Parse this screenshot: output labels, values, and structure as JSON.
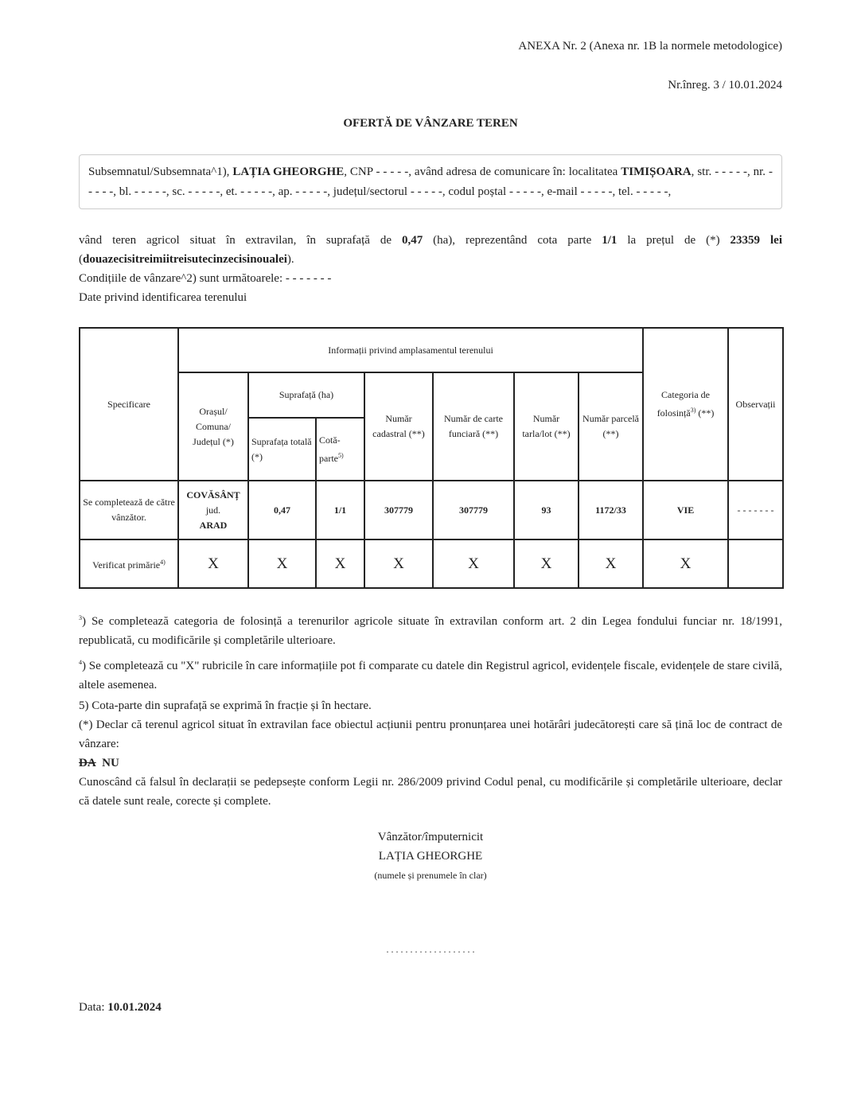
{
  "header": {
    "annex": "ANEXA Nr. 2 (Anexa nr. 1B la normele metodologice)",
    "registration": "Nr.înreg. 3 / 10.01.2024",
    "title": "OFERTĂ DE VÂNZARE TEREN"
  },
  "identity": {
    "p1": "Subsemnatul/Subsemnata^1), ",
    "name": "LAȚIA GHEORGHE",
    "p2": ", CNP - - - - -, având adresa de comunicare în: localitatea ",
    "city": "TIMIȘOARA",
    "p3": ", str. - - - - -, nr. - - - - -, bl. - - - - -, sc. - - - - -, et. - - - - -, ap. - - - - -, județul/sectorul - - - - -, codul poștal - - - - -, e-mail - - - - -, tel. - - - - -,"
  },
  "offer": {
    "p1": "vând teren agricol situat în extravilan, în suprafață de ",
    "area": "0,47",
    "p2": " (ha), reprezentând cota parte ",
    "share": "1/1",
    "p3": " la prețul de (*) ",
    "price": "23359 lei",
    "p4": " (",
    "price_words": "douazecisitreimiitreisutecinzecisinoualei",
    "p5": ").",
    "conditions": "Condițiile de vânzare^2) sunt următoarele: - - - - - - -",
    "land_data": "Date privind identificarea terenului"
  },
  "table": {
    "h_spec": "Specificare",
    "h_info": "Informații privind amplasamentul terenului",
    "h_city": "Orașul/ Comuna/ Județul (*)",
    "h_area": "Suprafață (ha)",
    "h_total": "Suprafața totală (*)",
    "h_share": "Cotă-parte",
    "h_share_sup": "5)",
    "h_cad": "Număr cadastral (**)",
    "h_cf": "Număr de carte funciară (**)",
    "h_tarla": "Număr tarla/lot (**)",
    "h_parcel": "Număr parcelă (**)",
    "h_cat": "Categoria de folosință",
    "h_cat_sup": "3)",
    "h_cat_suffix": " (**)",
    "h_obs": "Observații",
    "row1": {
      "label": "Se completează de către vânzător.",
      "city": "COVĂSÂNȚ",
      "jud": "jud.",
      "county": "ARAD",
      "total": "0,47",
      "share": "1/1",
      "cad": "307779",
      "cf": "307779",
      "tarla": "93",
      "parcel": "1172/33",
      "cat": "VIE",
      "obs": "- - - - - - -"
    },
    "row2": {
      "label": "Verificat primărie",
      "label_sup": "4)",
      "mark": "X"
    }
  },
  "notes": {
    "n3_sup": "3",
    "n3": ") Se completează categoria de folosință a terenurilor agricole situate în extravilan conform art. 2 din Legea fondului funciar nr. 18/1991, republicată, cu modificările și completările ulterioare.",
    "n4_sup": "4",
    "n4": ") Se completează cu \"X\" rubricile în care informațiile pot fi comparate cu datele din Registrul agricol, evidențele fiscale, evidențele de stare civilă, altele asemenea.",
    "n5": "5) Cota-parte din suprafață se exprimă în fracție și în hectare.",
    "declare": "(*) Declar că terenul agricol situat în extravilan face obiectul acțiunii pentru pronunțarea unei hotărâri judecătorești care să țină loc de contract de vânzare:",
    "da": "DA",
    "nu": "NU",
    "penal": "Cunoscând că falsul în declarații se pedepsește conform Legii nr. 286/2009 privind Codul penal, cu modificările și completările ulterioare, declar că datele sunt reale, corecte și complete."
  },
  "signature": {
    "role": "Vânzător/împuternicit",
    "name": "LAȚIA GHEORGHE",
    "hint": "(numele și prenumele în clar)",
    "line": ". . . . . . . . . . . . . . . . . . ."
  },
  "date": {
    "label": "Data: ",
    "value": "10.01.2024"
  }
}
